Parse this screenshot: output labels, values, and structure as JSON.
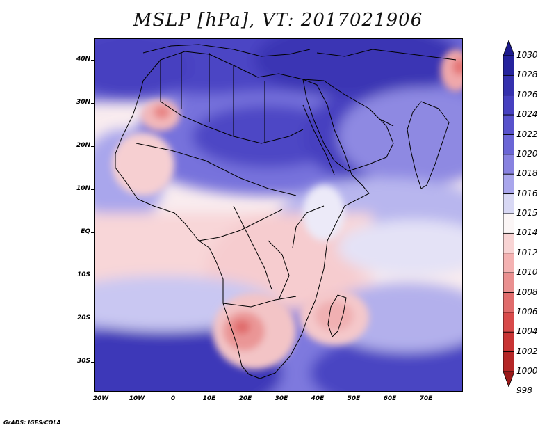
{
  "title": "MSLP [hPa], VT: 2017021906",
  "credit": "GrADS: IGES/COLA",
  "map": {
    "lat_labels": [
      "40N",
      "30N",
      "20N",
      "10N",
      "EQ",
      "10S",
      "20S",
      "30S"
    ],
    "lon_labels": [
      "20W",
      "10W",
      "0",
      "10E",
      "20E",
      "30E",
      "40E",
      "50E",
      "60E",
      "70E"
    ]
  },
  "legend": {
    "labels": [
      "1030",
      "1028",
      "1026",
      "1024",
      "1022",
      "1020",
      "1018",
      "1016",
      "1015",
      "1014",
      "1012",
      "1010",
      "1008",
      "1006",
      "1004",
      "1002",
      "1000",
      "998"
    ],
    "colors": [
      "#1c1a8e",
      "#25239d",
      "#3531ae",
      "#4640c0",
      "#5852cc",
      "#6b66d6",
      "#8882e0",
      "#a9a6ec",
      "#d8d8f4",
      "#fbf6f6",
      "#f8d4d4",
      "#f4b2b2",
      "#ea9090",
      "#e06c6c",
      "#d84a4a",
      "#c83434",
      "#b42626",
      "#9a1818"
    ]
  }
}
